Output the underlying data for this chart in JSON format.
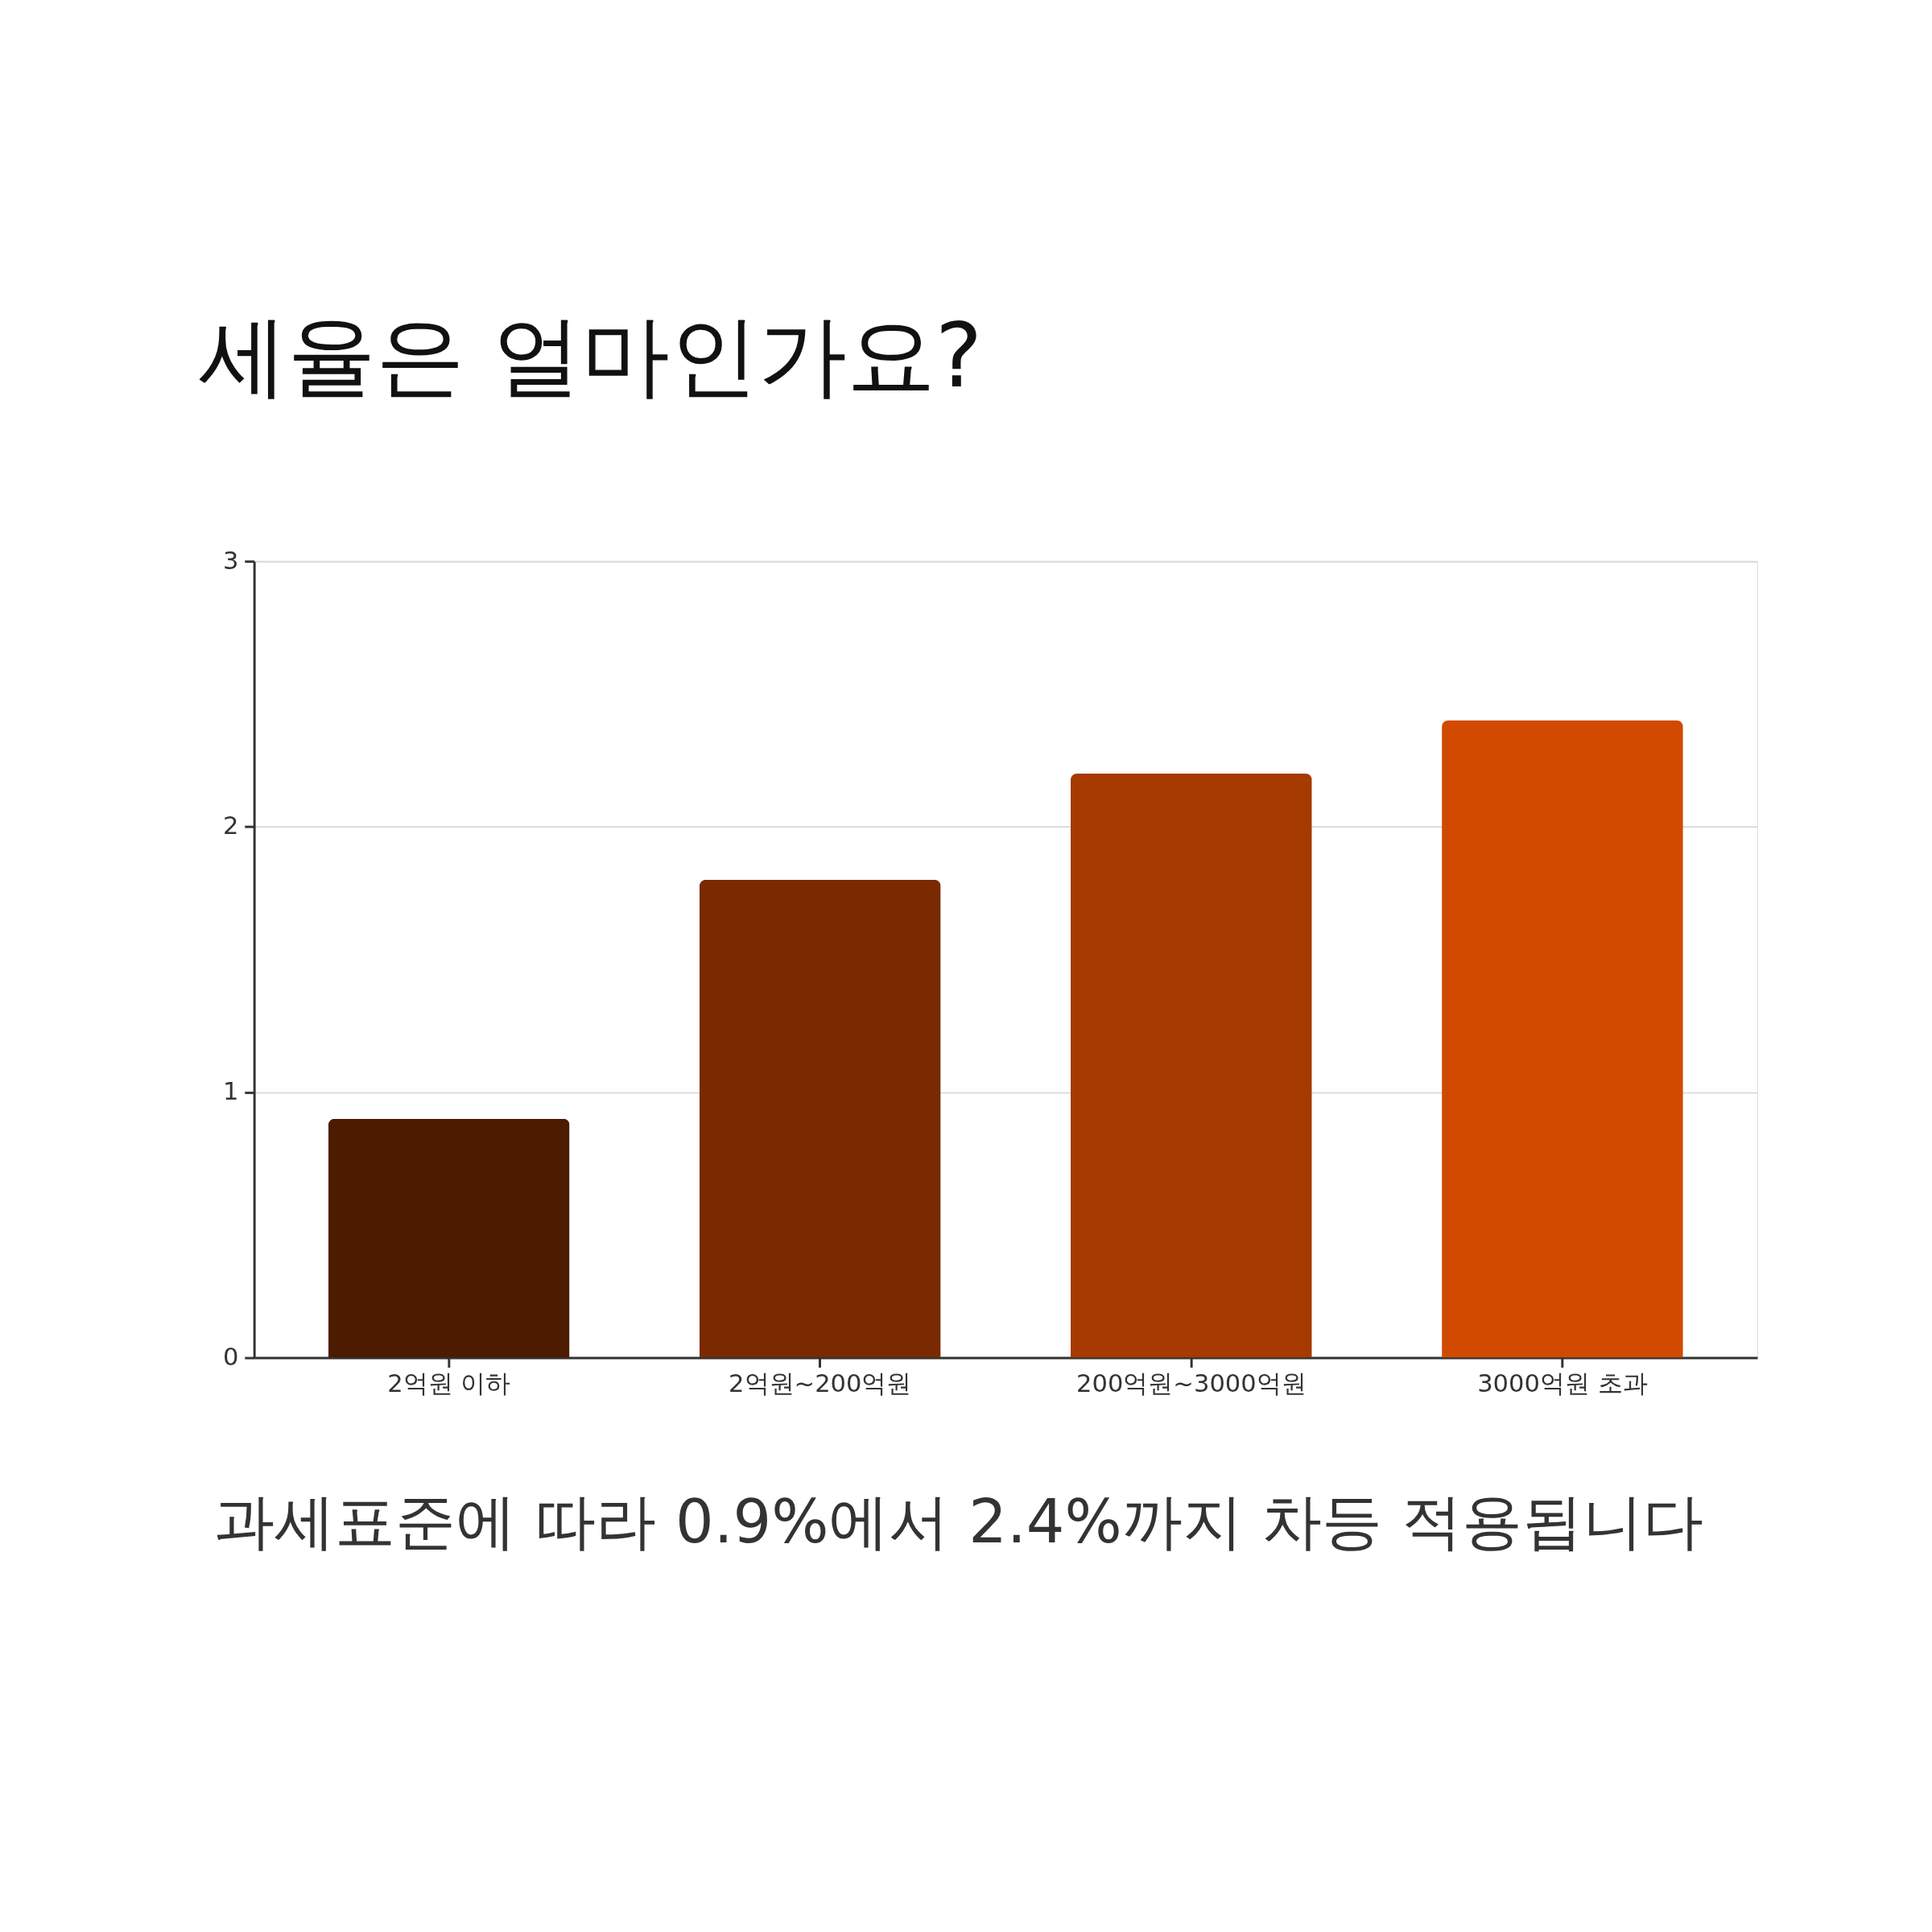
{
  "chart_data": {
    "type": "bar",
    "title": "세율은 얼마인가요?",
    "categories": [
      "2억원 이하",
      "2억원~200억원",
      "200억원~3000억원",
      "3000억원 초과"
    ],
    "values": [
      0.9,
      1.8,
      2.2,
      2.4
    ],
    "colors": [
      "#4d1b00",
      "#7a2a00",
      "#a63a00",
      "#d14a00"
    ],
    "ylim": [
      0,
      3
    ],
    "yticks": [
      0,
      1,
      2,
      3
    ],
    "grid": "y",
    "annotations": [
      "과세표준에 따라 0.9%에서 2.4%까지 차등 적용됩니다"
    ]
  }
}
